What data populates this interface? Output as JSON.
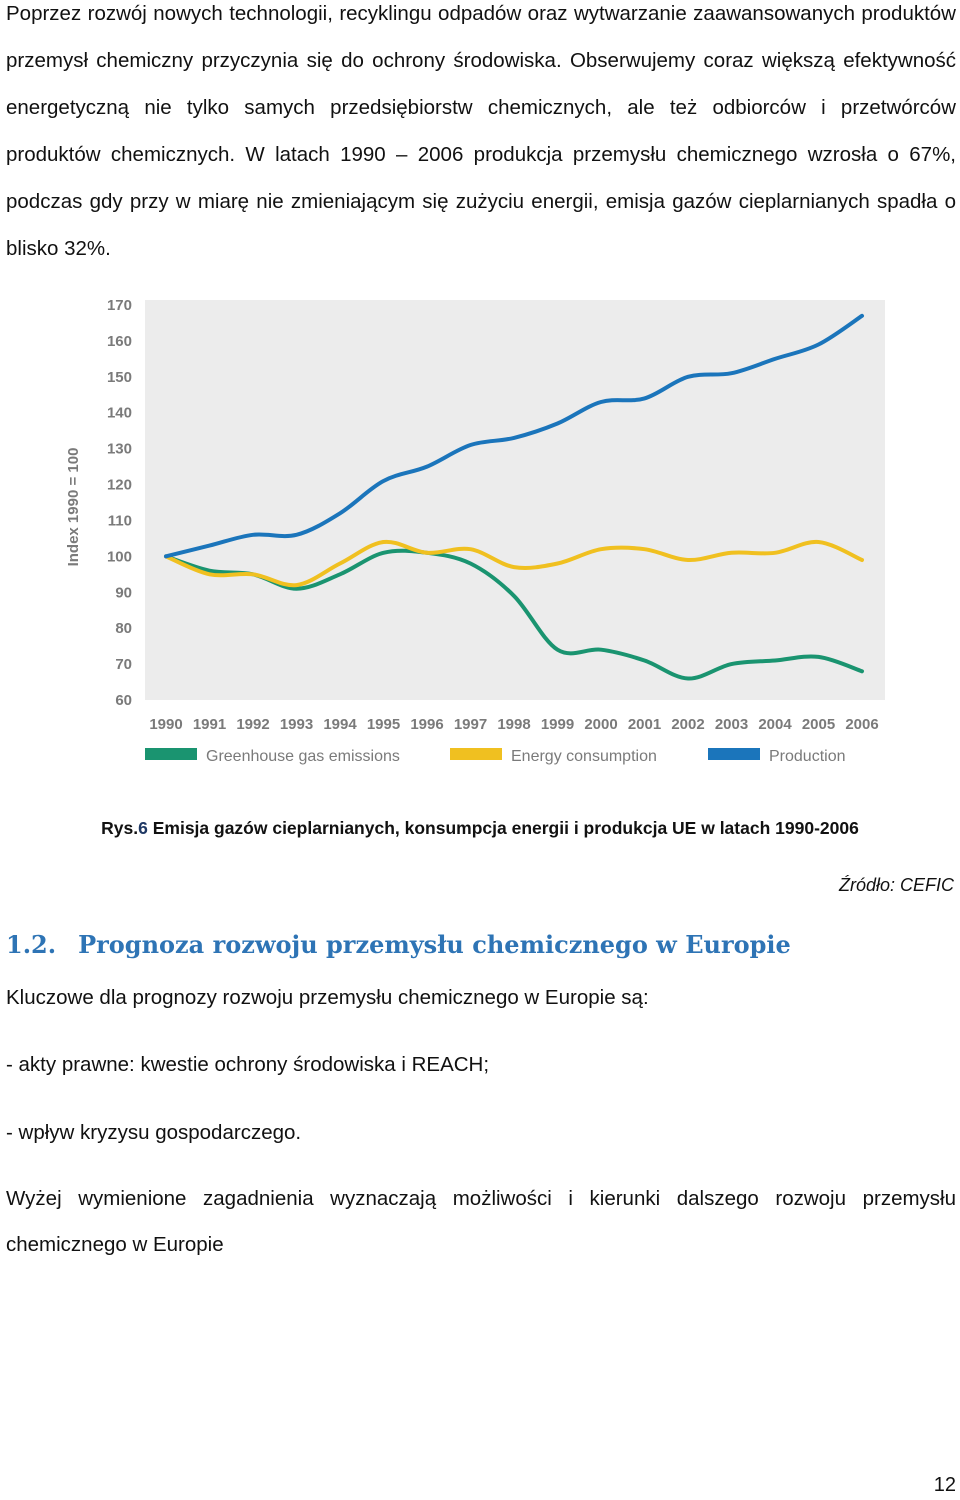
{
  "intro_paragraph": "Poprzez rozwój nowych technologii, recyklingu odpadów oraz wytwarzanie zaawansowanych produktów przemysł chemiczny przyczynia się do ochrony środowiska. Obserwujemy coraz większą efektywność energetyczną nie tylko samych przedsiębiorstw chemicznych, ale też odbiorców i przetwórców produktów chemicznych. W latach 1990 – 2006 produkcja przemysłu chemicznego wzrosła o 67%, podczas gdy przy w miarę nie zmieniającym się zużyciu energii, emisja gazów cieplarnianych spadła o blisko 32%.",
  "chart_data": {
    "type": "line",
    "title": "",
    "xlabel": "",
    "ylabel": "Index 1990 = 100",
    "x": [
      "1990",
      "1991",
      "1992",
      "1993",
      "1994",
      "1995",
      "1996",
      "1997",
      "1998",
      "1999",
      "2000",
      "2001",
      "2002",
      "2003",
      "2004",
      "2005",
      "2006"
    ],
    "yticks": [
      "60",
      "70",
      "80",
      "90",
      "100",
      "110",
      "120",
      "130",
      "140",
      "150",
      "160",
      "170"
    ],
    "ylim": [
      60,
      170
    ],
    "grid": false,
    "legend_position": "bottom",
    "series": [
      {
        "name": "Greenhouse gas emissions",
        "color": "#1a9470",
        "values": [
          100,
          96,
          95,
          91,
          95,
          101,
          101,
          98,
          89,
          74,
          74,
          71,
          66,
          70,
          71,
          72,
          68
        ]
      },
      {
        "name": "Energy consumption",
        "color": "#f0c020",
        "values": [
          100,
          95,
          95,
          92,
          98,
          104,
          101,
          102,
          97,
          98,
          102,
          102,
          99,
          101,
          101,
          104,
          99
        ]
      },
      {
        "name": "Production",
        "color": "#1b75bb",
        "values": [
          100,
          103,
          106,
          106,
          112,
          121,
          125,
          131,
          133,
          137,
          143,
          144,
          150,
          151,
          155,
          159,
          167
        ]
      }
    ]
  },
  "caption": {
    "prefix": "Rys.",
    "number": "6",
    "text": " Emisja gazów cieplarnianych, konsumpcja energii i produkcja UE w latach 1990-2006"
  },
  "source": "Źródło: CEFIC",
  "section": {
    "number": "1.2.",
    "title": "Prognoza rozwoju przemysłu chemicznego w Europie"
  },
  "lead": "Kluczowe dla prognozy rozwoju przemysłu chemicznego w Europie są:",
  "bullets": [
    "- akty prawne: kwestie ochrony środowiska i REACH;",
    "- wpływ kryzysu gospodarczego."
  ],
  "closing_paragraph": "Wyżej wymienione zagadnienia wyznaczają możliwości i kierunki dalszego rozwoju przemysłu chemicznego w Europie",
  "page_number": "12"
}
